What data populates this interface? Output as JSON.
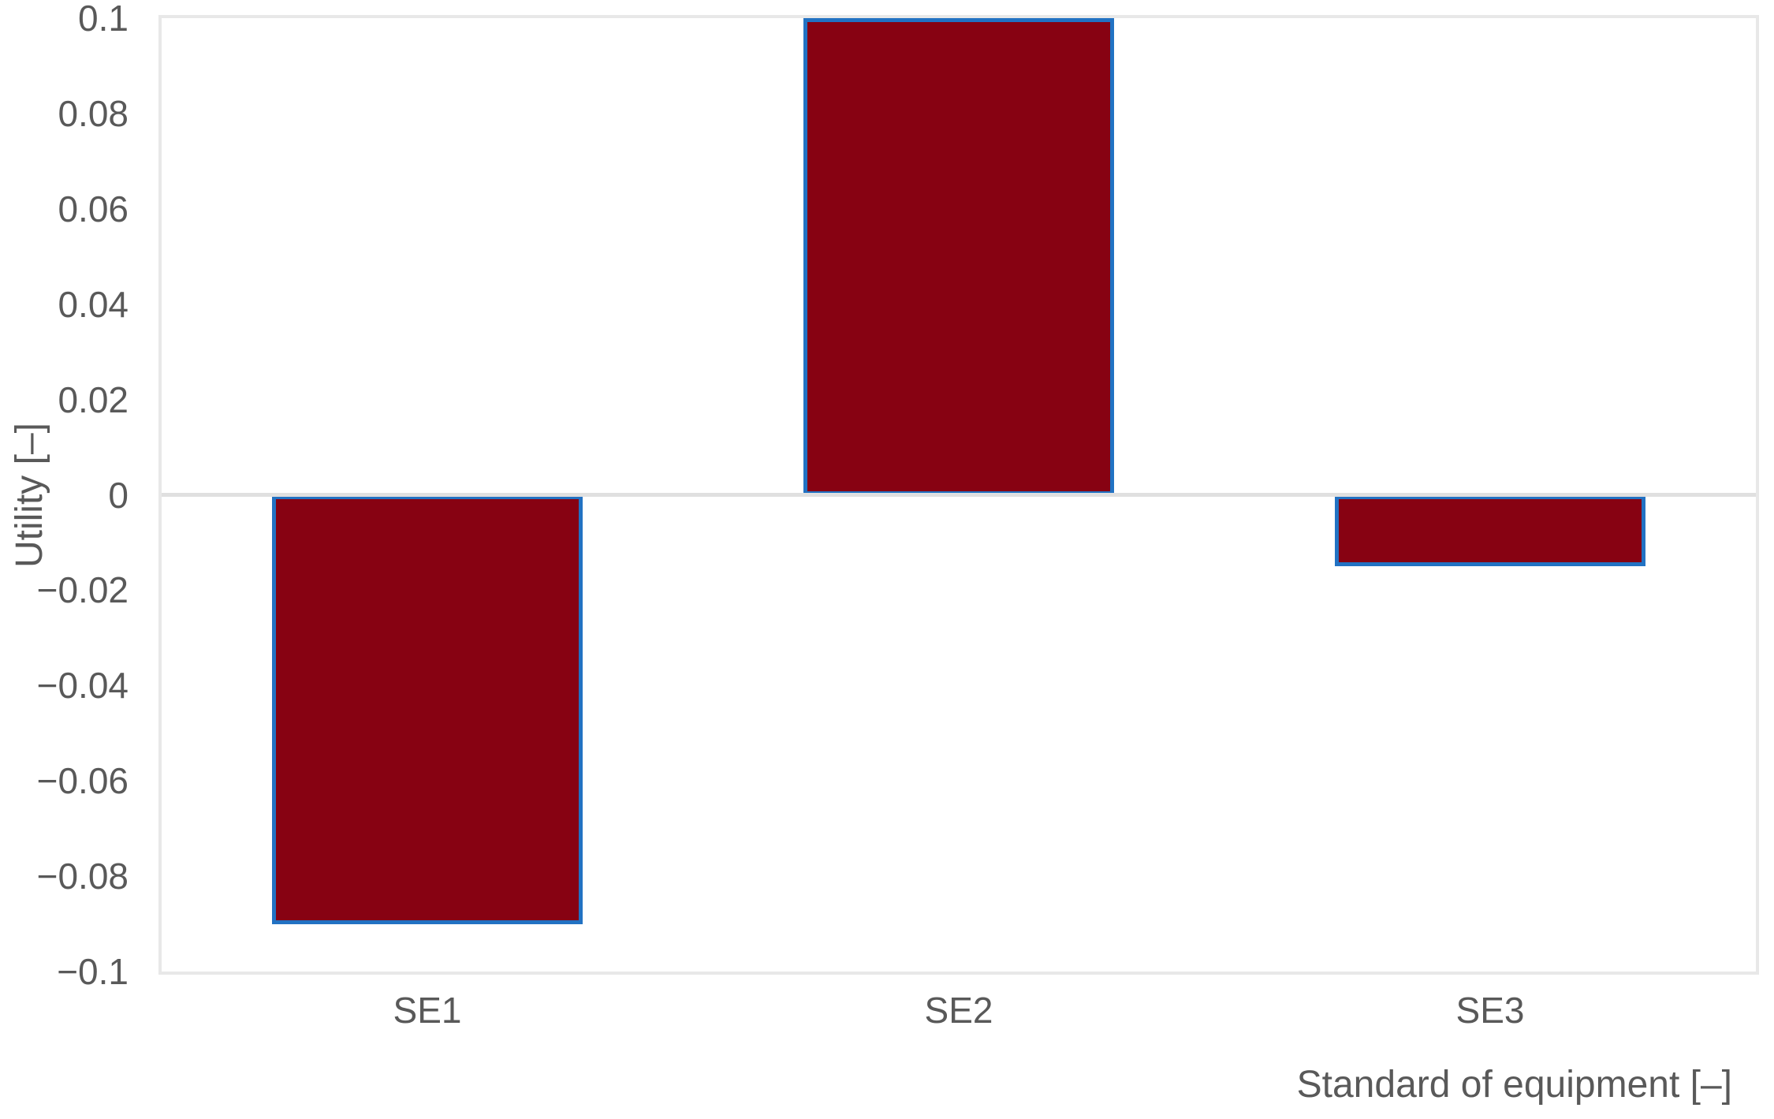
{
  "chart_data": {
    "type": "bar",
    "title": "",
    "categories": [
      "SE1",
      "SE2",
      "SE3"
    ],
    "values": [
      -0.09,
      0.1,
      -0.015
    ],
    "series": [
      {
        "name": "Utility",
        "values": [
          -0.09,
          0.1,
          -0.015
        ]
      }
    ],
    "xlabel": "Standard of equipment [–]",
    "ylabel": "Utility [–]",
    "ylim": [
      -0.1,
      0.1
    ],
    "ytick_step": 0.02,
    "ytick_labels": [
      "0.1",
      "0.08",
      "0.06",
      "0.04",
      "0.02",
      "0",
      "−0.02",
      "−0.04",
      "−0.06",
      "−0.08",
      "−0.1"
    ],
    "ytick_values": [
      0.1,
      0.08,
      0.06,
      0.04,
      0.02,
      0,
      -0.02,
      -0.04,
      -0.06,
      -0.08,
      -0.1
    ],
    "grid": "zero-line-only",
    "legend": null,
    "bar_width_frac": 0.585,
    "colors": {
      "bar_fill": "#870212",
      "bar_border": "#2272C3",
      "plot_border": "#E8E8E8",
      "zero_line": "#E0E0E0",
      "text": "#595959",
      "background": "#FFFFFF"
    }
  }
}
